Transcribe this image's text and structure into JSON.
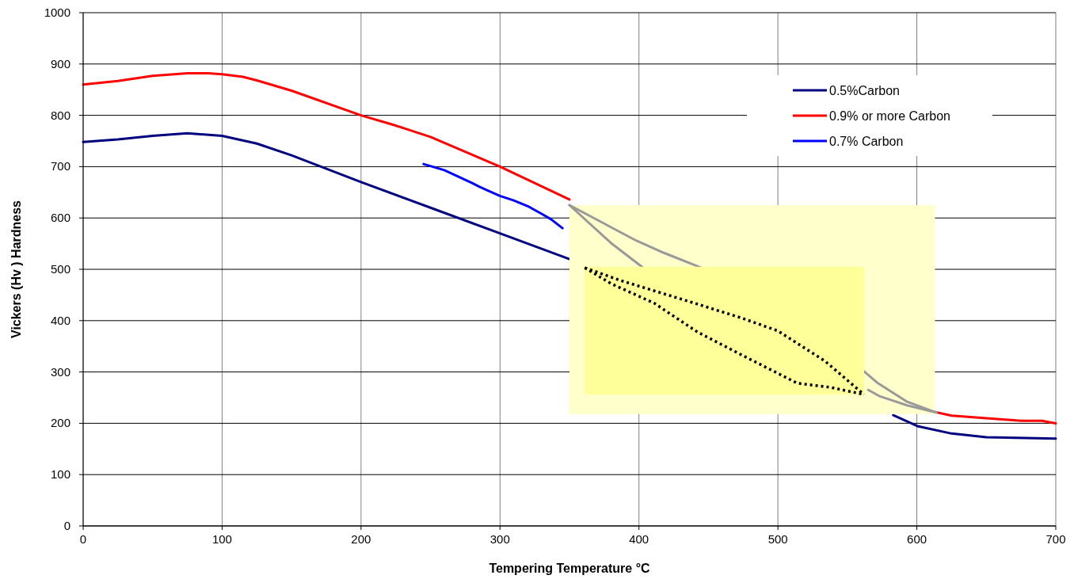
{
  "chart_data": {
    "type": "line",
    "xlabel": "Tempering Temperature °C",
    "ylabel": "Vickers (Hv ) Hardness",
    "xlim": [
      0,
      700
    ],
    "xticks": [
      0,
      100,
      200,
      300,
      400,
      500,
      600,
      700
    ],
    "ylim": [
      0,
      1000
    ],
    "yticks": [
      0,
      100,
      200,
      300,
      400,
      500,
      600,
      700,
      800,
      900,
      1000
    ],
    "grid": true,
    "legend": "top right",
    "line_style": "solid",
    "series": [
      {
        "name": "0.5%Carbon",
        "color": "#000080",
        "x": [
          0,
          25,
          50,
          75,
          100,
          125,
          150,
          200,
          250,
          300,
          350,
          null,
          583,
          601,
          625,
          650,
          700
        ],
        "values": [
          748,
          753,
          760,
          765,
          760,
          745,
          722,
          670,
          620,
          570,
          520,
          null,
          216,
          194,
          180,
          173,
          170
        ]
      },
      {
        "name": "0.9% or more Carbon",
        "color": "#ff0000",
        "x": [
          0,
          25,
          50,
          75,
          90,
          100,
          115,
          125,
          150,
          200,
          225,
          250,
          300,
          350,
          null,
          613,
          625,
          650,
          675,
          690,
          700
        ],
        "values": [
          860,
          867,
          877,
          882,
          882,
          880,
          875,
          868,
          848,
          800,
          780,
          758,
          700,
          636,
          null,
          222,
          215,
          210,
          205,
          205,
          200
        ]
      },
      {
        "name": "0.7% Carbon",
        "color": "#0000ff",
        "x": [
          245,
          260,
          280,
          285,
          290,
          300,
          310,
          320,
          330,
          337,
          345
        ],
        "values": [
          705,
          693,
          668,
          661,
          655,
          643,
          634,
          623,
          608,
          597,
          580
        ]
      },
      {
        "color": "#999999",
        "x": [
          350,
          398,
          418,
          445,
          null,
          562,
          572,
          593,
          614
        ],
        "values": [
          625,
          556,
          532,
          503,
          null,
          301,
          278,
          242,
          221
        ]
      },
      {
        "color": "#999999",
        "x": [
          350,
          380,
          403,
          null,
          565,
          573,
          593,
          614
        ],
        "values": [
          625,
          551,
          503,
          null,
          265,
          253,
          235,
          221
        ]
      },
      {
        "color": "#000000",
        "line_style": "dotted",
        "x": [
          361,
          387,
          440,
          474,
          500,
          534,
          562
        ],
        "values": [
          503,
          478,
          434,
          405,
          380,
          321,
          256
        ]
      },
      {
        "color": "#000000",
        "line_style": "dotted",
        "x": [
          361,
          380,
          411,
          442,
          474,
          514,
          538,
          562
        ],
        "values": [
          503,
          472,
          434,
          378,
          333,
          278,
          270,
          256
        ]
      }
    ]
  }
}
